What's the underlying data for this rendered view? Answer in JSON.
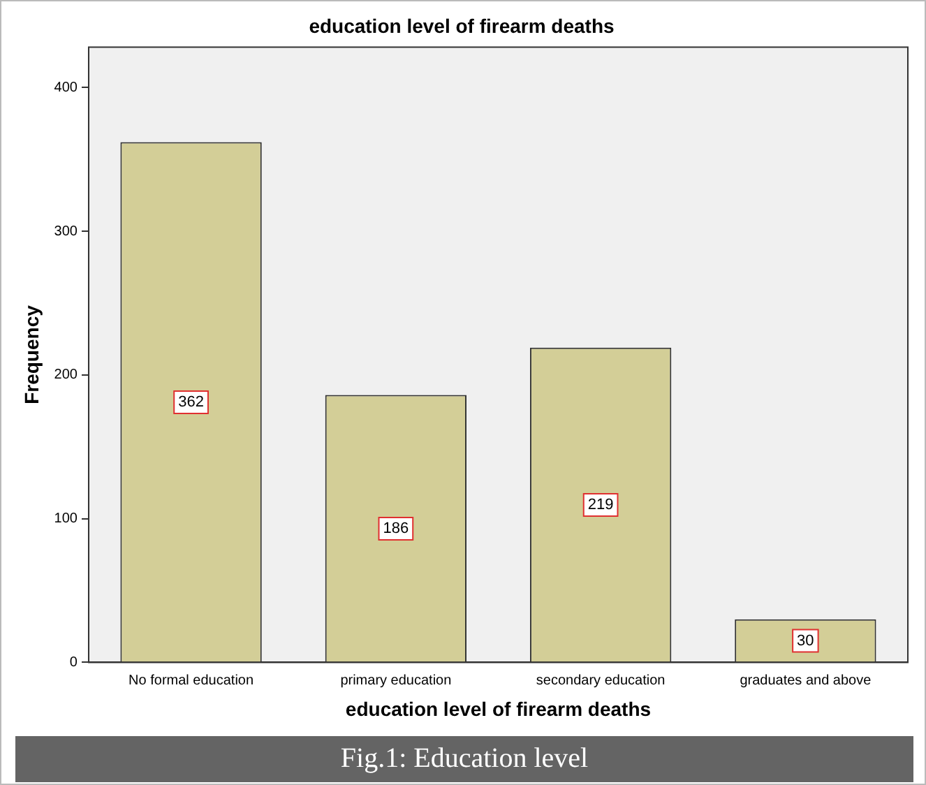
{
  "chart_data": {
    "type": "bar",
    "title": "education level of firearm deaths",
    "xlabel": "education level of firearm deaths",
    "ylabel": "Frequency",
    "categories": [
      "No formal education",
      "primary education",
      "secondary education",
      "graduates and above"
    ],
    "values": [
      362,
      186,
      219,
      30
    ],
    "color": "#d3ce97",
    "ylim": [
      0,
      428
    ],
    "yticks": [
      0,
      100,
      200,
      300,
      400
    ],
    "grid": false,
    "legend": false,
    "data_labels": true,
    "annotations": [
      "Fig.1: Education level"
    ]
  }
}
